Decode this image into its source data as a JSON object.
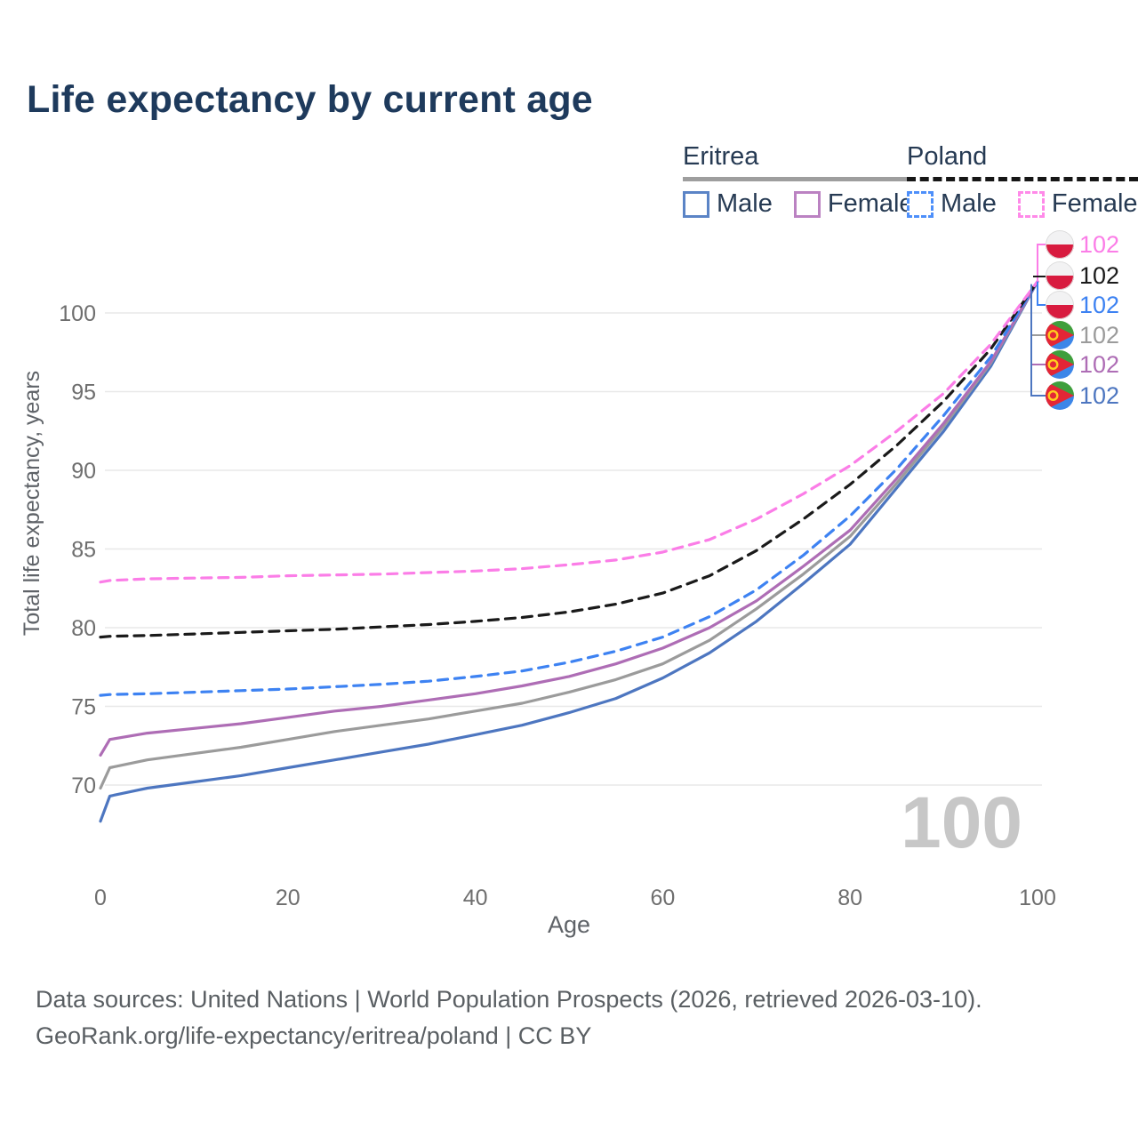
{
  "title": "Life expectancy by current age",
  "colors": {
    "title_text": "#1e3a5c",
    "legend_text": "#263a53",
    "axis_tick_text": "#6e6e6e",
    "axis_title_text": "#5f6368",
    "gridline": "#e8e8e8",
    "footer_text": "#5a5f63",
    "watermark_text": "#c7c7c7",
    "background": "#ffffff"
  },
  "legend": {
    "groups": [
      {
        "country": "Eritrea",
        "line_style": "solid",
        "underline_color": "#9e9e9e",
        "items": [
          {
            "label": "Male",
            "color": "#5b84c6"
          },
          {
            "label": "Female",
            "color": "#bb82c2"
          }
        ]
      },
      {
        "country": "Poland",
        "line_style": "dashed",
        "underline_color": "#161616",
        "items": [
          {
            "label": "Male",
            "color": "#4d8ffa"
          },
          {
            "label": "Female",
            "color": "#ff8ae9"
          }
        ]
      }
    ]
  },
  "chart_data": {
    "type": "line",
    "title": "Life expectancy by current age",
    "xlabel": "Age",
    "ylabel": "Total life expectancy, years",
    "xlim": [
      0,
      100
    ],
    "ylim": [
      66,
      103
    ],
    "xticks": [
      0,
      20,
      40,
      60,
      80,
      100
    ],
    "yticks": [
      70,
      75,
      80,
      85,
      90,
      95,
      100
    ],
    "grid": "horizontal",
    "legend_position": "top-right",
    "watermark": "100",
    "x": [
      0,
      1,
      5,
      10,
      15,
      20,
      25,
      30,
      35,
      40,
      45,
      50,
      55,
      60,
      65,
      70,
      75,
      80,
      85,
      90,
      95,
      100
    ],
    "series": [
      {
        "id": "poland-female",
        "name": "Poland Female",
        "country": "Poland",
        "sex": "Female",
        "color": "#fb7de7",
        "dashed": true,
        "flag": "poland",
        "end_label": "102",
        "values": [
          82.9,
          83.0,
          83.1,
          83.15,
          83.2,
          83.3,
          83.35,
          83.4,
          83.5,
          83.6,
          83.75,
          84.0,
          84.3,
          84.8,
          85.6,
          86.9,
          88.5,
          90.3,
          92.5,
          94.9,
          98.0,
          102
        ]
      },
      {
        "id": "poland-both",
        "name": "Poland Both sexes",
        "country": "Poland",
        "sex": "Both",
        "color": "#1a1a1a",
        "dashed": true,
        "flag": "poland",
        "end_label": "102",
        "values": [
          79.4,
          79.45,
          79.5,
          79.6,
          79.7,
          79.8,
          79.9,
          80.05,
          80.2,
          80.4,
          80.65,
          81.0,
          81.5,
          82.2,
          83.3,
          84.9,
          86.9,
          89.1,
          91.6,
          94.4,
          97.7,
          102
        ]
      },
      {
        "id": "poland-male",
        "name": "Poland Male",
        "country": "Poland",
        "sex": "Male",
        "color": "#3d82f2",
        "dashed": true,
        "flag": "poland",
        "end_label": "102",
        "values": [
          75.7,
          75.75,
          75.8,
          75.9,
          76.0,
          76.1,
          76.25,
          76.4,
          76.6,
          76.9,
          77.25,
          77.8,
          78.5,
          79.4,
          80.7,
          82.4,
          84.6,
          87.1,
          90.1,
          93.5,
          97.2,
          102
        ]
      },
      {
        "id": "eritrea-both",
        "name": "Eritrea Both sexes",
        "country": "Eritrea",
        "sex": "Both",
        "color": "#9b9b9b",
        "dashed": false,
        "flag": "eritrea",
        "end_label": "102",
        "values": [
          69.8,
          71.1,
          71.6,
          72.0,
          72.4,
          72.9,
          73.4,
          73.8,
          74.2,
          74.7,
          75.2,
          75.9,
          76.7,
          77.7,
          79.2,
          81.2,
          83.4,
          85.8,
          89.2,
          92.8,
          96.8,
          102
        ]
      },
      {
        "id": "eritrea-female",
        "name": "Eritrea Female",
        "country": "Eritrea",
        "sex": "Female",
        "color": "#ae6db5",
        "dashed": false,
        "flag": "eritrea",
        "end_label": "102",
        "values": [
          71.9,
          72.9,
          73.3,
          73.6,
          73.9,
          74.3,
          74.7,
          75.0,
          75.4,
          75.8,
          76.3,
          76.9,
          77.7,
          78.7,
          80.0,
          81.7,
          83.9,
          86.2,
          89.5,
          93.0,
          96.9,
          102
        ]
      },
      {
        "id": "eritrea-male",
        "name": "Eritrea Male",
        "country": "Eritrea",
        "sex": "Male",
        "color": "#4d76c0",
        "dashed": false,
        "flag": "eritrea",
        "end_label": "102",
        "values": [
          67.7,
          69.3,
          69.8,
          70.2,
          70.6,
          71.1,
          71.6,
          72.1,
          72.6,
          73.2,
          73.8,
          74.6,
          75.5,
          76.8,
          78.4,
          80.4,
          82.8,
          85.3,
          88.9,
          92.5,
          96.6,
          102
        ]
      }
    ]
  },
  "flags": {
    "poland": {
      "top": "#f2f2f3",
      "bottom": "#d81b3f",
      "ring": "#dcdcdc"
    },
    "eritrea": {
      "top": "#3f9e3c",
      "bottom": "#3c86e8",
      "triangle": "#e32636",
      "emblem": "#ffcc1f"
    }
  },
  "footer": {
    "line1": "Data sources: United Nations | World Population Prospects (2026, retrieved 2026-03-10).",
    "line2": "GeoRank.org/life-expectancy/eritrea/poland | CC BY"
  }
}
